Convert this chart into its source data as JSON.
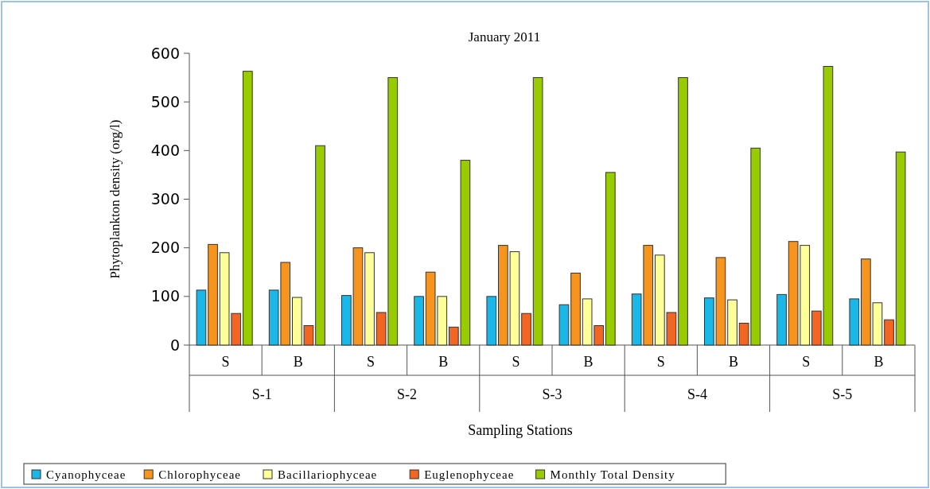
{
  "chart_data": {
    "type": "bar",
    "title": "January 2011",
    "xlabel": "Sampling Stations",
    "ylabel": "Phytoplankton density (org/l)",
    "categories": [
      "S",
      "B",
      "S",
      "B",
      "S",
      "B",
      "S",
      "B",
      "S",
      "B"
    ],
    "annotations": [
      "S-1",
      "S-2",
      "S-3",
      "S-4",
      "S-5"
    ],
    "ylim": [
      0,
      600
    ],
    "yticks": [
      0,
      100,
      200,
      300,
      400,
      500,
      600
    ],
    "legend": "bottom",
    "series": [
      {
        "name": "Cyanophyceae",
        "color": "#1ab8e8",
        "values": [
          113,
          113,
          102,
          100,
          100,
          83,
          105,
          97,
          104,
          95
        ]
      },
      {
        "name": "Chlorophyceae",
        "color": "#f7941d",
        "values": [
          207,
          170,
          200,
          150,
          205,
          148,
          205,
          180,
          213,
          177
        ]
      },
      {
        "name": "Bacillariophyceae",
        "color": "#ffff99",
        "values": [
          190,
          98,
          190,
          100,
          192,
          95,
          185,
          93,
          205,
          87
        ]
      },
      {
        "name": "Euglenophyceae",
        "color": "#f26522",
        "values": [
          65,
          40,
          67,
          37,
          65,
          40,
          67,
          45,
          70,
          52
        ]
      },
      {
        "name": "Monthly Total Density",
        "color": "#99cc00",
        "values": [
          563,
          410,
          550,
          380,
          550,
          355,
          550,
          405,
          573,
          397
        ]
      }
    ]
  }
}
